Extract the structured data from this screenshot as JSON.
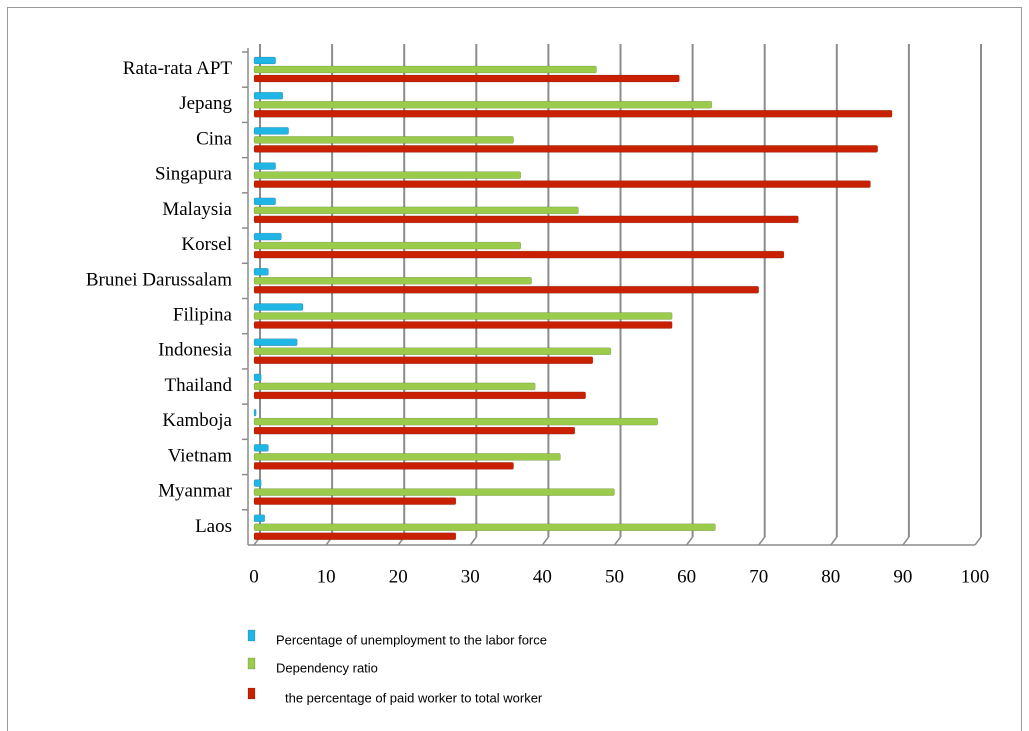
{
  "chart_data": {
    "type": "bar",
    "orientation": "horizontal",
    "categories": [
      "Laos",
      "Myanmar",
      "Vietnam",
      "Kamboja",
      "Thailand",
      "Indonesia",
      "Filipina",
      "Brunei Darussalam",
      "Korsel",
      "Malaysia",
      "Singapura",
      "Cina",
      "Jepang",
      "Rata-rata APT"
    ],
    "series": [
      {
        "name": "Percentage of unemployment to the labor force",
        "color": "#1fb6e6",
        "values": [
          1.5,
          1,
          2,
          0.3,
          1,
          6,
          6.8,
          2,
          3.8,
          3,
          3,
          4.8,
          4,
          3
        ]
      },
      {
        "name": "Dependency ratio",
        "color": "#9acb4a",
        "values": [
          64,
          50,
          42.5,
          56,
          39,
          49.5,
          58,
          38.5,
          37,
          45,
          37,
          36,
          63.5,
          47.5
        ]
      },
      {
        "name": "the percentage of paid worker to total worker",
        "color": "#c82000",
        "values": [
          28,
          28,
          36,
          44.5,
          46,
          47,
          58,
          70,
          73.5,
          75.5,
          85.5,
          86.5,
          88.5,
          59
        ]
      }
    ],
    "xlim": [
      0,
      100
    ],
    "xticks": [
      0,
      10,
      20,
      30,
      40,
      50,
      60,
      70,
      80,
      90,
      100
    ],
    "grid": true
  }
}
